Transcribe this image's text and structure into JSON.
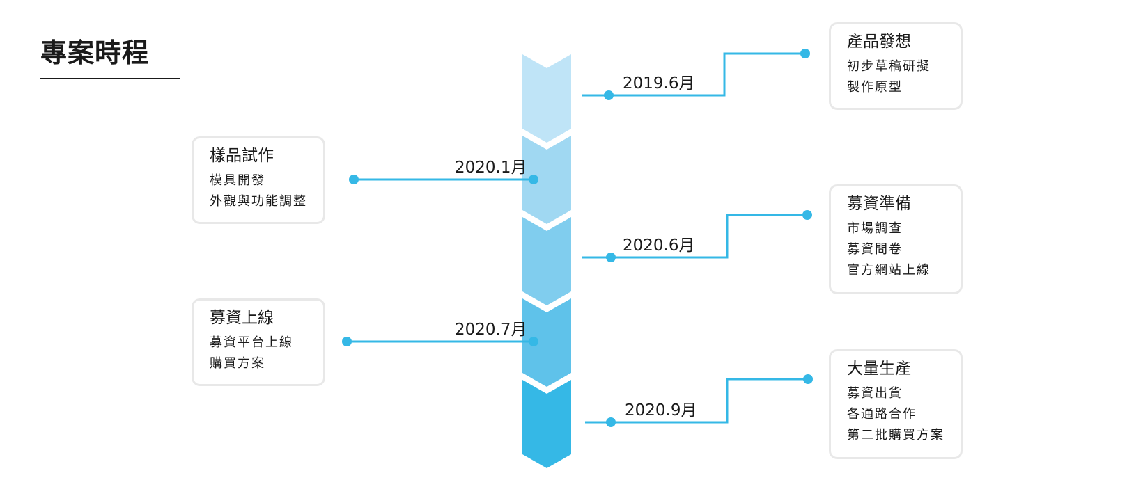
{
  "page": {
    "title": "專案時程"
  },
  "colors": {
    "line": "#35b8e6",
    "dot": "#35b8e6",
    "card_border": "#e8e8e8",
    "arrow_segments": [
      "#bfe4f7",
      "#a0d8f2",
      "#80cdee",
      "#5fc2ea",
      "#35b8e6"
    ]
  },
  "milestones": [
    {
      "date": "2019.6月",
      "side": "right",
      "title": "產品發想",
      "items": [
        "初步草稿研擬",
        "製作原型"
      ]
    },
    {
      "date": "2020.1月",
      "side": "left",
      "title": "樣品試作",
      "items": [
        "模具開發",
        "外觀與功能調整"
      ]
    },
    {
      "date": "2020.6月",
      "side": "right",
      "title": "募資準備",
      "items": [
        "市場調查",
        "募資問卷",
        "官方網站上線"
      ]
    },
    {
      "date": "2020.7月",
      "side": "left",
      "title": "募資上線",
      "items": [
        "募資平台上線",
        "購買方案"
      ]
    },
    {
      "date": "2020.9月",
      "side": "right",
      "title": "大量生產",
      "items": [
        "募資出貨",
        "各通路合作",
        "第二批購買方案"
      ]
    }
  ]
}
